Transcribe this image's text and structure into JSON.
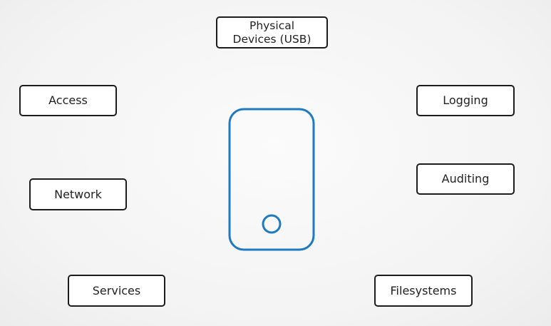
{
  "diagram": {
    "center": {
      "icon": "smartphone-icon",
      "stroke_color": "#1f7ac4"
    },
    "nodes": {
      "physical_devices": "Physical\nDevices (USB)",
      "access": "Access",
      "logging": "Logging",
      "auditing": "Auditing",
      "network": "Network",
      "services": "Services",
      "filesystems": "Filesystems"
    }
  }
}
